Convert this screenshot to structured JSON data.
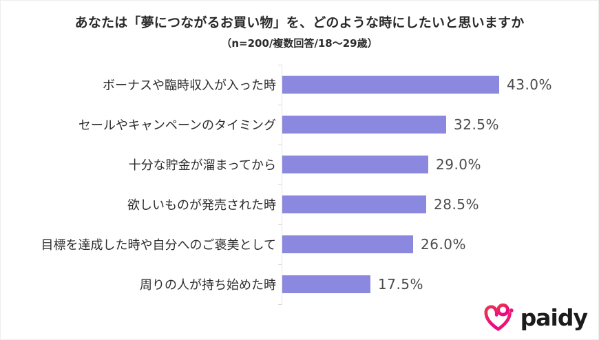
{
  "chart_data": {
    "type": "bar",
    "orientation": "horizontal",
    "title": "あなたは「夢につながるお買い物」を、どのような時にしたいと思いますか",
    "subtitle": "（n=200/複数回答/18～29歳）",
    "categories": [
      "ボーナスや臨時収入が入った時",
      "セールやキャンペーンのタイミング",
      "十分な貯金が溜まってから",
      "欲しいものが発売された時",
      "目標を達成した時や自分へのご褒美として",
      "周りの人が持ち始めた時"
    ],
    "values": [
      43.0,
      32.5,
      29.0,
      28.5,
      26.0,
      17.5
    ],
    "value_labels": [
      "43.0%",
      "32.5%",
      "29.0%",
      "28.5%",
      "26.0%",
      "17.5%"
    ],
    "unit": "%",
    "xlim": [
      0,
      45
    ],
    "grid": false,
    "legend": false,
    "bar_color": "#8B88E0"
  },
  "footer": {
    "logo_text": "paidy",
    "logo_icon": "paidy-heart-icon",
    "logo_text_color": "#1C1C1C",
    "logo_gradient_start": "#E7394B",
    "logo_gradient_end": "#F0008F"
  }
}
